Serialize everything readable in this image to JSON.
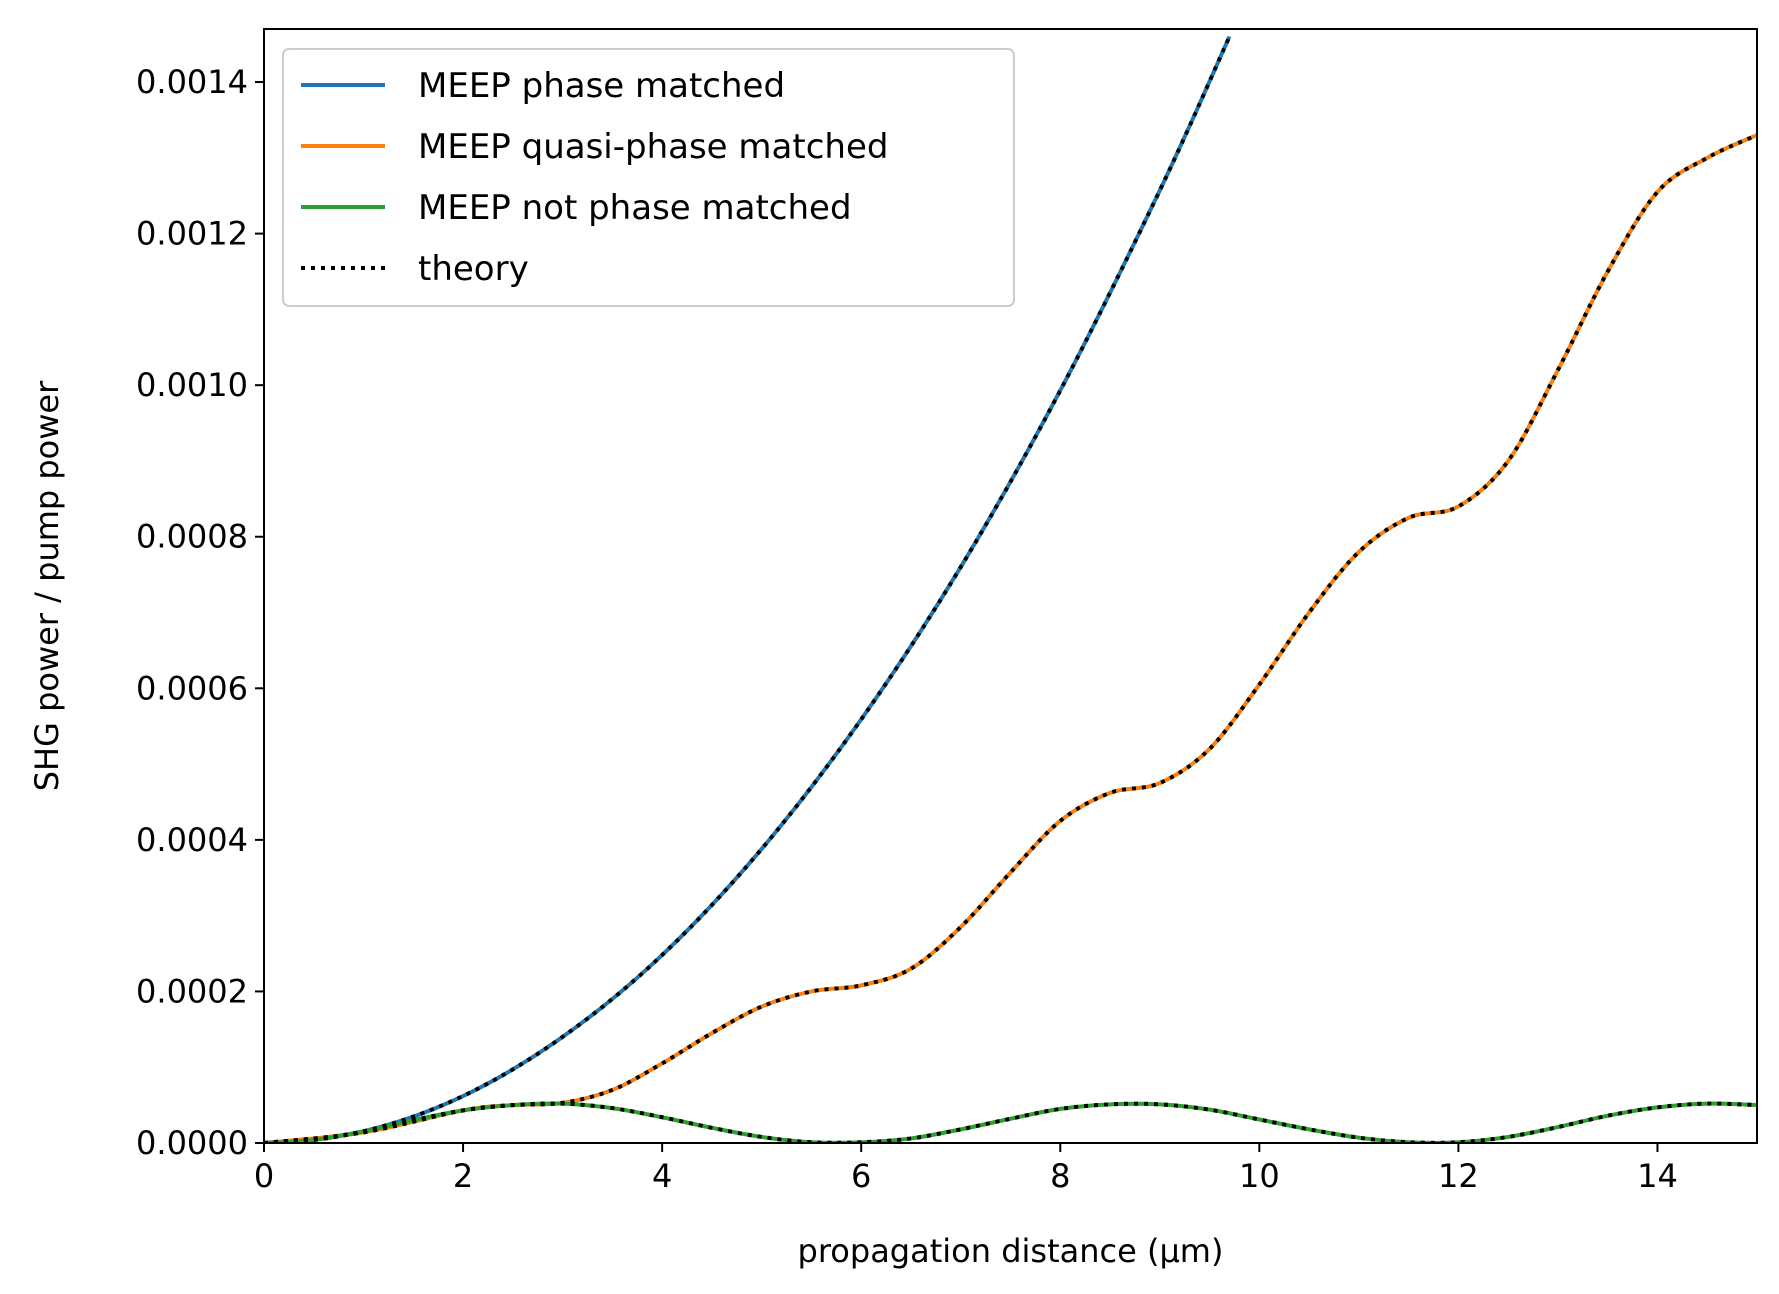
{
  "chart_data": {
    "type": "line",
    "xlabel": "propagation distance (µm)",
    "ylabel": "SHG power / pump power",
    "xlim": [
      0,
      15
    ],
    "ylim": [
      0,
      0.00147
    ],
    "x_ticks": [
      0,
      2,
      4,
      6,
      8,
      10,
      12,
      14
    ],
    "x_tick_labels": [
      "0",
      "2",
      "4",
      "6",
      "8",
      "10",
      "12",
      "14"
    ],
    "y_ticks": [
      0,
      0.0002,
      0.0004,
      0.0006,
      0.0008,
      0.001,
      0.0012,
      0.0014
    ],
    "y_tick_labels": [
      "0.0000",
      "0.0002",
      "0.0004",
      "0.0006",
      "0.0008",
      "0.0010",
      "0.0012",
      "0.0014"
    ],
    "grid": false,
    "legend_position": "top-left",
    "series": [
      {
        "name": "MEEP phase matched",
        "color": "#1f77b4",
        "style": "solid",
        "x": [
          0,
          1,
          2,
          3,
          4,
          5,
          6,
          7,
          8,
          9,
          9.7
        ],
        "y": [
          0,
          1.55e-05,
          6.2e-05,
          0.00014,
          0.000248,
          0.000388,
          0.000559,
          0.00076,
          0.000993,
          0.001257,
          0.00146
        ]
      },
      {
        "name": "MEEP quasi-phase matched",
        "color": "#ff7f0e",
        "style": "solid",
        "x": [
          0,
          1,
          2,
          2.5,
          3,
          3.5,
          4,
          4.5,
          5,
          5.5,
          6,
          6.5,
          7,
          7.5,
          8,
          8.5,
          9,
          9.5,
          10,
          10.5,
          11,
          11.5,
          12,
          12.5,
          13,
          13.5,
          14,
          14.5,
          15
        ],
        "y": [
          0,
          1.4e-05,
          4.3e-05,
          5e-05,
          5.3e-05,
          7e-05,
          0.000105,
          0.000145,
          0.00018,
          0.0002,
          0.000208,
          0.00023,
          0.000285,
          0.000357,
          0.000425,
          0.000462,
          0.000475,
          0.00052,
          0.000605,
          0.0007,
          0.00078,
          0.000825,
          0.00084,
          0.0009,
          0.00102,
          0.00115,
          0.001255,
          0.0013,
          0.00133
        ]
      },
      {
        "name": "MEEP not phase matched",
        "color": "#2ca02c",
        "style": "solid",
        "x": [
          0,
          0.5,
          1,
          1.5,
          2,
          2.5,
          3,
          3.5,
          4,
          4.5,
          5,
          5.5,
          6,
          6.5,
          7,
          7.5,
          8,
          8.5,
          9,
          9.5,
          10,
          10.5,
          11,
          11.5,
          12,
          12.5,
          13,
          13.5,
          14,
          14.5,
          15
        ],
        "y": [
          0,
          4e-06,
          1.5e-05,
          3e-05,
          4.3e-05,
          5e-05,
          5.2e-05,
          4.6e-05,
          3.4e-05,
          2e-05,
          8e-06,
          1e-06,
          1e-06,
          6e-06,
          1.8e-05,
          3.2e-05,
          4.5e-05,
          5.1e-05,
          5.1e-05,
          4.4e-05,
          3.1e-05,
          1.8e-05,
          7e-06,
          1e-06,
          1e-06,
          8e-06,
          2.1e-05,
          3.6e-05,
          4.7e-05,
          5.2e-05,
          5e-05
        ]
      },
      {
        "name": "theory",
        "color": "#000000",
        "style": "dotted",
        "overlays": [
          "MEEP phase matched",
          "MEEP quasi-phase matched",
          "MEEP not phase matched"
        ]
      }
    ]
  }
}
